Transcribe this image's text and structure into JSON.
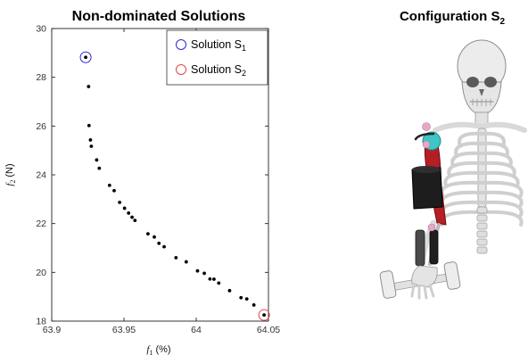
{
  "chart_data": {
    "type": "scatter",
    "title": "Non-dominated Solutions",
    "xlabel": {
      "symbol": "f",
      "sub": "1",
      "unit": "(%)"
    },
    "ylabel": {
      "symbol": "f",
      "sub": "2",
      "unit": "(N)"
    },
    "xlim": [
      63.9,
      64.05
    ],
    "ylim": [
      18,
      30
    ],
    "xticks": [
      63.9,
      63.95,
      64.0,
      64.05
    ],
    "xtick_labels": [
      "63.9",
      "63.95",
      "64",
      "64.05"
    ],
    "yticks": [
      18,
      20,
      22,
      24,
      26,
      28,
      30
    ],
    "ytick_labels": [
      "18",
      "20",
      "22",
      "24",
      "26",
      "28",
      "30"
    ],
    "grid": false,
    "point_color": "#000000",
    "series": [
      {
        "points": [
          [
            63.9235,
            28.82
          ],
          [
            63.9255,
            27.62
          ],
          [
            63.9258,
            26.02
          ],
          [
            63.9268,
            25.43
          ],
          [
            63.9274,
            25.17
          ],
          [
            63.9311,
            24.61
          ],
          [
            63.9329,
            24.27
          ],
          [
            63.94,
            23.57
          ],
          [
            63.9432,
            23.35
          ],
          [
            63.947,
            22.87
          ],
          [
            63.9504,
            22.63
          ],
          [
            63.9532,
            22.43
          ],
          [
            63.9556,
            22.26
          ],
          [
            63.9576,
            22.13
          ],
          [
            63.9666,
            21.58
          ],
          [
            63.971,
            21.45
          ],
          [
            63.9742,
            21.19
          ],
          [
            63.9778,
            21.05
          ],
          [
            63.986,
            20.6
          ],
          [
            63.9931,
            20.43
          ],
          [
            64.0009,
            20.06
          ],
          [
            64.0056,
            19.96
          ],
          [
            64.0095,
            19.73
          ],
          [
            64.0123,
            19.72
          ],
          [
            64.0156,
            19.56
          ],
          [
            64.0231,
            19.25
          ],
          [
            64.031,
            18.96
          ],
          [
            64.035,
            18.91
          ],
          [
            64.0399,
            18.66
          ],
          [
            64.047,
            18.25
          ]
        ]
      }
    ],
    "highlights": [
      {
        "label": "Solution S",
        "sub": "1",
        "x": 63.9235,
        "y": 28.82,
        "color": "#2b2bd6"
      },
      {
        "label": "Solution S",
        "sub": "2",
        "x": 64.047,
        "y": 18.25,
        "color": "#e04848"
      }
    ],
    "legend_position": "top-right"
  },
  "figure": {
    "right_title": {
      "text": "Configuration S",
      "sub": "2"
    },
    "illustration": "upper-body-skeleton-with-arm-exoskeleton"
  }
}
